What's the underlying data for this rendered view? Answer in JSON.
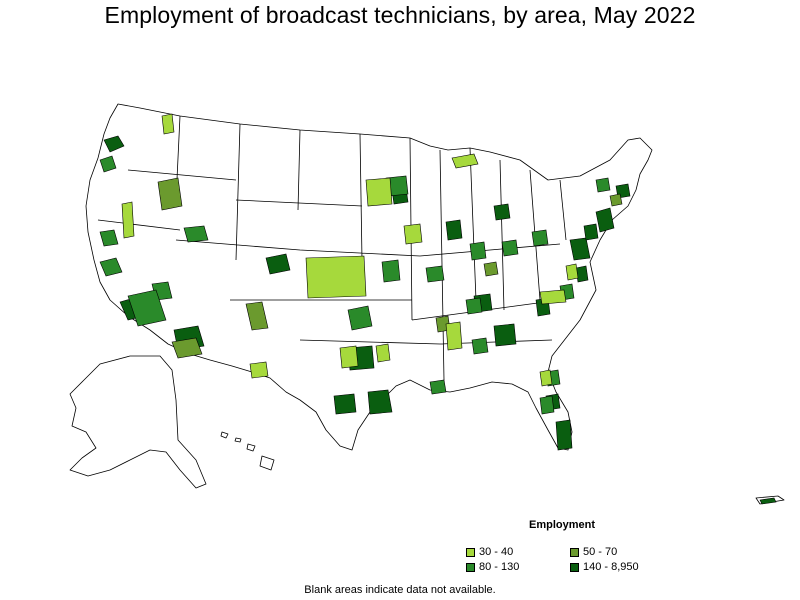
{
  "title": "Employment of broadcast technicians, by area, May 2022",
  "legend": {
    "title": "Employment",
    "items": [
      {
        "label": "30 - 40",
        "color": "#a6d93c"
      },
      {
        "label": "50 - 70",
        "color": "#6b9a2e"
      },
      {
        "label": "80 - 130",
        "color": "#2a8a2a"
      },
      {
        "label": "140 - 8,950",
        "color": "#0a5e10"
      }
    ]
  },
  "note": "Blank areas indicate data not available.",
  "colors": {
    "outline": "#000000",
    "blank": "#ffffff"
  }
}
